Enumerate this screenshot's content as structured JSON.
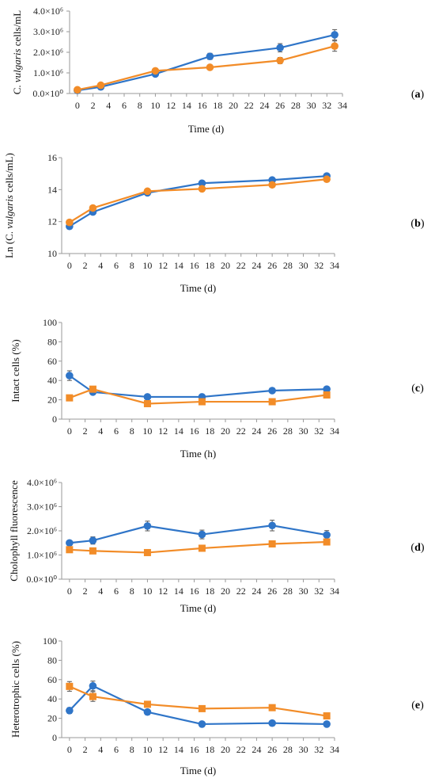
{
  "chart_data": [
    {
      "panel_label": "(a)",
      "type": "line",
      "ylabel_prefix": "C.",
      "ylabel_italic": "vulgaris",
      "ylabel_suffix": "cells/mL",
      "xlabel": "Time (d)",
      "ylim": [
        0,
        4000000
      ],
      "yticks": [
        0,
        1000000,
        2000000,
        3000000,
        4000000
      ],
      "ytick_labels": [
        "0.0×10⁰",
        "1.0×10⁶",
        "2.0×10⁶",
        "3.0×10⁶",
        "4.0×10⁶"
      ],
      "xlim": [
        -1,
        34
      ],
      "xticks": [
        0,
        2,
        4,
        6,
        8,
        10,
        12,
        14,
        16,
        18,
        20,
        22,
        24,
        26,
        28,
        30,
        32,
        34
      ],
      "x": [
        0,
        3,
        10,
        17,
        26,
        33
      ],
      "grid": false,
      "series": [
        {
          "color": "#2f75c8",
          "marker": "circle",
          "values": [
            150000,
            320000,
            950000,
            1800000,
            2220000,
            2850000
          ],
          "errors": [
            50000,
            60000,
            80000,
            150000,
            200000,
            250000
          ]
        },
        {
          "color": "#f28c28",
          "marker": "circle",
          "values": [
            180000,
            400000,
            1100000,
            1270000,
            1600000,
            2300000
          ],
          "errors": [
            50000,
            60000,
            80000,
            100000,
            150000,
            250000
          ]
        }
      ]
    },
    {
      "panel_label": "(b)",
      "type": "line",
      "ylabel_prefix": "Ln (C.",
      "ylabel_italic": "vulgaris",
      "ylabel_suffix": "cells/mL)",
      "xlabel": "Time (d)",
      "ylim": [
        10,
        16
      ],
      "yticks": [
        10,
        12,
        14,
        16
      ],
      "ytick_labels": [
        "10",
        "12",
        "14",
        "16"
      ],
      "xlim": [
        -1,
        34
      ],
      "xticks": [
        0,
        2,
        4,
        6,
        8,
        10,
        12,
        14,
        16,
        18,
        20,
        22,
        24,
        26,
        28,
        30,
        32,
        34
      ],
      "x": [
        0,
        3,
        10,
        17,
        26,
        33
      ],
      "grid": false,
      "series": [
        {
          "color": "#2f75c8",
          "marker": "circle",
          "values": [
            11.7,
            12.6,
            13.8,
            14.4,
            14.6,
            14.85
          ],
          "errors": [
            0.05,
            0.05,
            0.05,
            0.05,
            0.05,
            0.05
          ]
        },
        {
          "color": "#f28c28",
          "marker": "circle",
          "values": [
            11.95,
            12.85,
            13.9,
            14.05,
            14.3,
            14.65
          ],
          "errors": [
            0.05,
            0.05,
            0.05,
            0.05,
            0.05,
            0.05
          ]
        }
      ]
    },
    {
      "panel_label": "(c)",
      "type": "line",
      "ylabel_prefix": "Intact  cells (%)",
      "ylabel_italic": "",
      "ylabel_suffix": "",
      "xlabel": "Time (h)",
      "ylim": [
        0,
        100
      ],
      "yticks": [
        0,
        20,
        40,
        60,
        80,
        100
      ],
      "ytick_labels": [
        "0",
        "20",
        "40",
        "60",
        "80",
        "100"
      ],
      "xlim": [
        -1,
        34
      ],
      "xticks": [
        0,
        2,
        4,
        6,
        8,
        10,
        12,
        14,
        16,
        18,
        20,
        22,
        24,
        26,
        28,
        30,
        32,
        34
      ],
      "x": [
        0,
        3,
        10,
        17,
        26,
        33
      ],
      "grid": false,
      "series": [
        {
          "color": "#2f75c8",
          "marker": "circle",
          "values": [
            45,
            28,
            23,
            23,
            29.5,
            31
          ],
          "errors": [
            5,
            2,
            1.5,
            1.5,
            2,
            2
          ]
        },
        {
          "color": "#f28c28",
          "marker": "square",
          "values": [
            22,
            31,
            16,
            18,
            18,
            25
          ],
          "errors": [
            1.5,
            2,
            1.5,
            1.5,
            1.5,
            2
          ]
        }
      ]
    },
    {
      "panel_label": "(d)",
      "type": "line",
      "ylabel_prefix": "Cholophyll fluorescence",
      "ylabel_italic": "",
      "ylabel_suffix": "",
      "xlabel": "Time (d)",
      "ylim": [
        0,
        4000000
      ],
      "yticks": [
        0,
        1000000,
        2000000,
        3000000,
        4000000
      ],
      "ytick_labels": [
        "0.0×10⁰",
        "1.0×10⁶",
        "2.0×10⁶",
        "3.0×10⁶",
        "4.0×10⁶"
      ],
      "xlim": [
        -1,
        34
      ],
      "xticks": [
        0,
        2,
        4,
        6,
        8,
        10,
        12,
        14,
        16,
        18,
        20,
        22,
        24,
        26,
        28,
        30,
        32,
        34
      ],
      "x": [
        0,
        3,
        10,
        17,
        26,
        33
      ],
      "grid": false,
      "series": [
        {
          "color": "#2f75c8",
          "marker": "circle",
          "values": [
            1500000,
            1600000,
            2200000,
            1850000,
            2220000,
            1830000
          ],
          "errors": [
            100000,
            150000,
            200000,
            180000,
            220000,
            180000
          ]
        },
        {
          "color": "#f28c28",
          "marker": "square",
          "values": [
            1220000,
            1170000,
            1100000,
            1280000,
            1460000,
            1540000
          ],
          "errors": [
            100000,
            100000,
            80000,
            100000,
            120000,
            120000
          ]
        }
      ]
    },
    {
      "panel_label": "(e)",
      "type": "line",
      "ylabel_prefix": "Heterotrophic cells (%)",
      "ylabel_italic": "",
      "ylabel_suffix": "",
      "xlabel": "Time (d)",
      "ylim": [
        0,
        100
      ],
      "yticks": [
        0,
        20,
        40,
        60,
        80,
        100
      ],
      "ytick_labels": [
        "0",
        "20",
        "40",
        "60",
        "80",
        "100"
      ],
      "xlim": [
        -1,
        34
      ],
      "xticks": [
        0,
        2,
        4,
        6,
        8,
        10,
        12,
        14,
        16,
        18,
        20,
        22,
        24,
        26,
        28,
        30,
        32,
        34
      ],
      "x": [
        0,
        3,
        10,
        17,
        26,
        33
      ],
      "grid": false,
      "series": [
        {
          "color": "#2f75c8",
          "marker": "circle",
          "values": [
            28,
            53.5,
            26.5,
            14,
            15,
            14
          ],
          "errors": [
            3,
            5,
            2,
            1.5,
            1.5,
            1.5
          ]
        },
        {
          "color": "#f28c28",
          "marker": "square",
          "values": [
            53,
            42.5,
            34.5,
            30,
            31,
            22.5
          ],
          "errors": [
            5,
            5,
            3,
            2,
            2.5,
            2
          ]
        }
      ]
    }
  ]
}
